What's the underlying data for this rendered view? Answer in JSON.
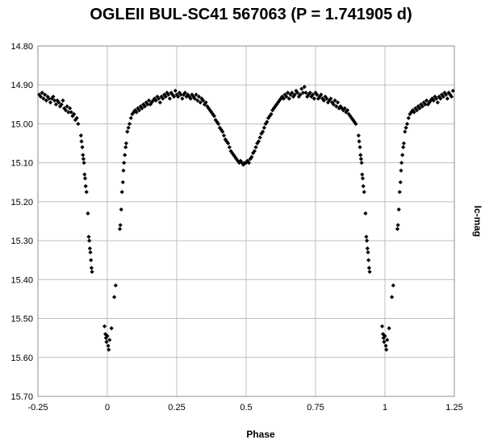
{
  "chart_data": {
    "type": "scatter",
    "title": "OGLEII BUL-SC41 567063 (P = 1.741905 d)",
    "xlabel": "Phase",
    "ylabel": "Ic-mag",
    "xlim": [
      -0.25,
      1.25
    ],
    "ylim": [
      14.8,
      15.7
    ],
    "y_reversed": true,
    "x_ticks": [
      "-0.25",
      "0",
      "0.25",
      "0.5",
      "0.75",
      "1",
      "1.25"
    ],
    "y_ticks": [
      "14.80",
      "14.90",
      "15.00",
      "15.10",
      "15.20",
      "15.30",
      "15.40",
      "15.50",
      "15.60",
      "15.70"
    ],
    "grid": "horizontal and vertical",
    "legend": "none",
    "marker": "diamond",
    "marker_color": "#000000",
    "series": [
      {
        "points": [
          [
            -0.245,
            14.925
          ],
          [
            -0.24,
            14.93
          ],
          [
            -0.235,
            14.92
          ],
          [
            -0.23,
            14.935
          ],
          [
            -0.225,
            14.925
          ],
          [
            -0.22,
            14.94
          ],
          [
            -0.215,
            14.93
          ],
          [
            -0.21,
            14.935
          ],
          [
            -0.205,
            14.945
          ],
          [
            -0.2,
            14.935
          ],
          [
            -0.195,
            14.93
          ],
          [
            -0.19,
            14.94
          ],
          [
            -0.185,
            14.95
          ],
          [
            -0.18,
            14.94
          ],
          [
            -0.175,
            14.945
          ],
          [
            -0.17,
            14.955
          ],
          [
            -0.165,
            14.95
          ],
          [
            -0.16,
            14.94
          ],
          [
            -0.155,
            14.96
          ],
          [
            -0.15,
            14.965
          ],
          [
            -0.145,
            14.955
          ],
          [
            -0.14,
            14.97
          ],
          [
            -0.135,
            14.96
          ],
          [
            -0.13,
            14.97
          ],
          [
            -0.125,
            14.98
          ],
          [
            -0.12,
            14.975
          ],
          [
            -0.115,
            14.99
          ],
          [
            -0.11,
            14.985
          ],
          [
            -0.105,
            15.0
          ],
          [
            -0.095,
            15.03
          ],
          [
            -0.093,
            15.045
          ],
          [
            -0.09,
            15.06
          ],
          [
            -0.088,
            15.08
          ],
          [
            -0.086,
            15.09
          ],
          [
            -0.084,
            15.1
          ],
          [
            -0.082,
            15.13
          ],
          [
            -0.08,
            15.14
          ],
          [
            -0.078,
            15.16
          ],
          [
            -0.075,
            15.175
          ],
          [
            -0.07,
            15.23
          ],
          [
            -0.067,
            15.29
          ],
          [
            -0.065,
            15.3
          ],
          [
            -0.063,
            15.32
          ],
          [
            -0.061,
            15.33
          ],
          [
            -0.059,
            15.35
          ],
          [
            -0.057,
            15.37
          ],
          [
            -0.055,
            15.38
          ],
          [
            -0.01,
            15.52
          ],
          [
            -0.007,
            15.54
          ],
          [
            -0.005,
            15.55
          ],
          [
            -0.003,
            15.56
          ],
          [
            0.0,
            15.545
          ],
          [
            0.003,
            15.57
          ],
          [
            0.005,
            15.58
          ],
          [
            0.008,
            15.555
          ],
          [
            0.015,
            15.525
          ],
          [
            0.025,
            15.445
          ],
          [
            0.03,
            15.415
          ],
          [
            0.045,
            15.27
          ],
          [
            0.047,
            15.26
          ],
          [
            0.05,
            15.22
          ],
          [
            0.053,
            15.175
          ],
          [
            0.056,
            15.15
          ],
          [
            0.058,
            15.12
          ],
          [
            0.06,
            15.1
          ],
          [
            0.063,
            15.08
          ],
          [
            0.066,
            15.06
          ],
          [
            0.068,
            15.05
          ],
          [
            0.072,
            15.02
          ],
          [
            0.076,
            15.01
          ],
          [
            0.08,
            15.0
          ],
          [
            0.085,
            14.985
          ],
          [
            0.09,
            14.975
          ],
          [
            0.095,
            14.97
          ],
          [
            0.1,
            14.965
          ],
          [
            0.105,
            14.97
          ],
          [
            0.11,
            14.96
          ],
          [
            0.115,
            14.965
          ],
          [
            0.12,
            14.955
          ],
          [
            0.125,
            14.96
          ],
          [
            0.13,
            14.95
          ],
          [
            0.135,
            14.955
          ],
          [
            0.14,
            14.945
          ],
          [
            0.145,
            14.95
          ],
          [
            0.15,
            14.94
          ],
          [
            0.155,
            14.95
          ],
          [
            0.16,
            14.945
          ],
          [
            0.165,
            14.94
          ],
          [
            0.17,
            14.935
          ],
          [
            0.175,
            14.94
          ],
          [
            0.18,
            14.93
          ],
          [
            0.185,
            14.935
          ],
          [
            0.19,
            14.945
          ],
          [
            0.195,
            14.93
          ],
          [
            0.2,
            14.935
          ],
          [
            0.205,
            14.925
          ],
          [
            0.21,
            14.93
          ],
          [
            0.215,
            14.92
          ],
          [
            0.22,
            14.925
          ],
          [
            0.225,
            14.935
          ],
          [
            0.23,
            14.92
          ],
          [
            0.235,
            14.925
          ],
          [
            0.24,
            14.93
          ],
          [
            0.245,
            14.915
          ],
          [
            0.25,
            14.925
          ],
          [
            0.255,
            14.93
          ],
          [
            0.26,
            14.92
          ],
          [
            0.265,
            14.925
          ],
          [
            0.27,
            14.935
          ],
          [
            0.275,
            14.925
          ],
          [
            0.28,
            14.92
          ],
          [
            0.285,
            14.93
          ],
          [
            0.29,
            14.925
          ],
          [
            0.295,
            14.93
          ],
          [
            0.3,
            14.935
          ],
          [
            0.305,
            14.925
          ],
          [
            0.31,
            14.93
          ],
          [
            0.315,
            14.935
          ],
          [
            0.32,
            14.925
          ],
          [
            0.325,
            14.94
          ],
          [
            0.33,
            14.93
          ],
          [
            0.335,
            14.945
          ],
          [
            0.34,
            14.935
          ],
          [
            0.345,
            14.94
          ],
          [
            0.35,
            14.95
          ],
          [
            0.355,
            14.945
          ],
          [
            0.36,
            14.955
          ],
          [
            0.365,
            14.96
          ],
          [
            0.37,
            14.965
          ],
          [
            0.375,
            14.97
          ],
          [
            0.38,
            14.975
          ],
          [
            0.385,
            14.98
          ],
          [
            0.39,
            14.99
          ],
          [
            0.395,
            14.995
          ],
          [
            0.4,
            15.0
          ],
          [
            0.405,
            15.01
          ],
          [
            0.41,
            15.015
          ],
          [
            0.415,
            15.02
          ],
          [
            0.42,
            15.03
          ],
          [
            0.425,
            15.04
          ],
          [
            0.43,
            15.045
          ],
          [
            0.435,
            15.05
          ],
          [
            0.44,
            15.06
          ],
          [
            0.445,
            15.07
          ],
          [
            0.45,
            15.075
          ],
          [
            0.455,
            15.08
          ],
          [
            0.46,
            15.085
          ],
          [
            0.465,
            15.09
          ],
          [
            0.47,
            15.095
          ],
          [
            0.475,
            15.1
          ],
          [
            0.48,
            15.095
          ],
          [
            0.485,
            15.1
          ],
          [
            0.49,
            15.105
          ],
          [
            0.495,
            15.1
          ],
          [
            0.5,
            15.1
          ],
          [
            0.505,
            15.095
          ],
          [
            0.51,
            15.1
          ],
          [
            0.515,
            15.09
          ],
          [
            0.52,
            15.085
          ],
          [
            0.525,
            15.075
          ],
          [
            0.53,
            15.07
          ],
          [
            0.535,
            15.06
          ],
          [
            0.54,
            15.05
          ],
          [
            0.545,
            15.045
          ],
          [
            0.55,
            15.035
          ],
          [
            0.555,
            15.025
          ],
          [
            0.56,
            15.02
          ],
          [
            0.565,
            15.01
          ],
          [
            0.57,
            15.0
          ],
          [
            0.575,
            14.995
          ],
          [
            0.58,
            14.985
          ],
          [
            0.585,
            14.98
          ],
          [
            0.59,
            14.975
          ],
          [
            0.595,
            14.965
          ],
          [
            0.6,
            14.96
          ],
          [
            0.605,
            14.955
          ],
          [
            0.61,
            14.95
          ],
          [
            0.615,
            14.945
          ],
          [
            0.62,
            14.94
          ],
          [
            0.625,
            14.935
          ],
          [
            0.63,
            14.93
          ],
          [
            0.635,
            14.935
          ],
          [
            0.64,
            14.925
          ],
          [
            0.645,
            14.93
          ],
          [
            0.65,
            14.92
          ],
          [
            0.655,
            14.935
          ],
          [
            0.66,
            14.925
          ],
          [
            0.665,
            14.92
          ],
          [
            0.67,
            14.93
          ],
          [
            0.675,
            14.925
          ],
          [
            0.68,
            14.915
          ],
          [
            0.685,
            14.92
          ],
          [
            0.69,
            14.93
          ],
          [
            0.695,
            14.925
          ],
          [
            0.7,
            14.91
          ],
          [
            0.705,
            14.92
          ],
          [
            0.71,
            14.905
          ],
          [
            0.715,
            14.92
          ],
          [
            0.72,
            14.93
          ],
          [
            0.725,
            14.925
          ],
          [
            0.73,
            14.92
          ],
          [
            0.735,
            14.93
          ],
          [
            0.74,
            14.925
          ],
          [
            0.745,
            14.935
          ],
          [
            0.75,
            14.92
          ],
          [
            0.755,
            14.925
          ],
          [
            0.76,
            14.935
          ],
          [
            0.765,
            14.93
          ],
          [
            0.77,
            14.925
          ],
          [
            0.775,
            14.935
          ],
          [
            0.78,
            14.94
          ],
          [
            0.785,
            14.93
          ],
          [
            0.79,
            14.935
          ],
          [
            0.795,
            14.945
          ],
          [
            0.8,
            14.94
          ],
          [
            0.805,
            14.935
          ],
          [
            0.81,
            14.945
          ],
          [
            0.815,
            14.95
          ],
          [
            0.82,
            14.94
          ],
          [
            0.825,
            14.955
          ],
          [
            0.83,
            14.945
          ],
          [
            0.835,
            14.96
          ],
          [
            0.84,
            14.955
          ],
          [
            0.845,
            14.96
          ],
          [
            0.85,
            14.965
          ],
          [
            0.855,
            14.96
          ],
          [
            0.86,
            14.97
          ],
          [
            0.865,
            14.965
          ],
          [
            0.87,
            14.975
          ],
          [
            0.875,
            14.98
          ],
          [
            0.88,
            14.985
          ],
          [
            0.885,
            14.99
          ],
          [
            0.89,
            14.995
          ],
          [
            0.895,
            15.0
          ],
          [
            0.905,
            15.03
          ],
          [
            0.907,
            15.045
          ],
          [
            0.91,
            15.06
          ],
          [
            0.912,
            15.08
          ],
          [
            0.914,
            15.09
          ],
          [
            0.916,
            15.1
          ],
          [
            0.918,
            15.13
          ],
          [
            0.92,
            15.14
          ],
          [
            0.922,
            15.16
          ],
          [
            0.925,
            15.175
          ],
          [
            0.93,
            15.23
          ],
          [
            0.933,
            15.29
          ],
          [
            0.935,
            15.3
          ],
          [
            0.937,
            15.32
          ],
          [
            0.939,
            15.33
          ],
          [
            0.941,
            15.35
          ],
          [
            0.943,
            15.37
          ],
          [
            0.945,
            15.38
          ],
          [
            0.99,
            15.52
          ],
          [
            0.993,
            15.54
          ],
          [
            0.995,
            15.55
          ],
          [
            0.997,
            15.56
          ],
          [
            1.0,
            15.545
          ],
          [
            1.003,
            15.57
          ],
          [
            1.005,
            15.58
          ],
          [
            1.008,
            15.555
          ],
          [
            1.015,
            15.525
          ],
          [
            1.025,
            15.445
          ],
          [
            1.03,
            15.415
          ],
          [
            1.045,
            15.27
          ],
          [
            1.047,
            15.26
          ],
          [
            1.05,
            15.22
          ],
          [
            1.053,
            15.175
          ],
          [
            1.056,
            15.15
          ],
          [
            1.058,
            15.12
          ],
          [
            1.06,
            15.1
          ],
          [
            1.063,
            15.08
          ],
          [
            1.066,
            15.06
          ],
          [
            1.068,
            15.05
          ],
          [
            1.072,
            15.02
          ],
          [
            1.076,
            15.01
          ],
          [
            1.08,
            15.0
          ],
          [
            1.085,
            14.985
          ],
          [
            1.09,
            14.975
          ],
          [
            1.095,
            14.97
          ],
          [
            1.1,
            14.965
          ],
          [
            1.105,
            14.97
          ],
          [
            1.11,
            14.96
          ],
          [
            1.115,
            14.965
          ],
          [
            1.12,
            14.955
          ],
          [
            1.125,
            14.96
          ],
          [
            1.13,
            14.95
          ],
          [
            1.135,
            14.955
          ],
          [
            1.14,
            14.945
          ],
          [
            1.145,
            14.95
          ],
          [
            1.15,
            14.94
          ],
          [
            1.155,
            14.95
          ],
          [
            1.16,
            14.945
          ],
          [
            1.165,
            14.94
          ],
          [
            1.17,
            14.935
          ],
          [
            1.175,
            14.94
          ],
          [
            1.18,
            14.93
          ],
          [
            1.185,
            14.935
          ],
          [
            1.19,
            14.945
          ],
          [
            1.195,
            14.93
          ],
          [
            1.2,
            14.935
          ],
          [
            1.205,
            14.925
          ],
          [
            1.21,
            14.93
          ],
          [
            1.215,
            14.92
          ],
          [
            1.22,
            14.925
          ],
          [
            1.225,
            14.935
          ],
          [
            1.23,
            14.92
          ],
          [
            1.235,
            14.925
          ],
          [
            1.24,
            14.93
          ],
          [
            1.245,
            14.915
          ]
        ]
      }
    ]
  }
}
